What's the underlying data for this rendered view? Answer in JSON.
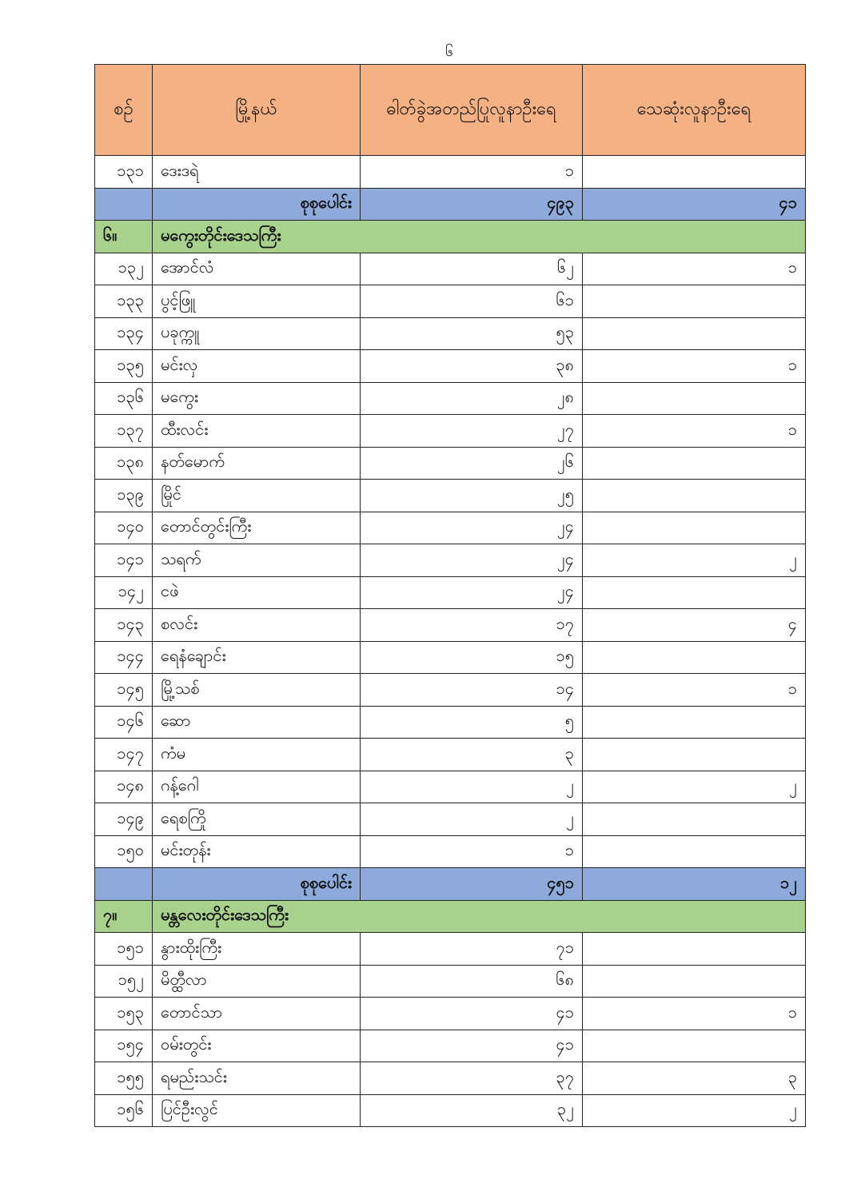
{
  "page_number": "၆",
  "colors": {
    "header": "#f4b183",
    "total_row": "#8eaadb",
    "section_row": "#a9d18e"
  },
  "table": {
    "headers": [
      "စဉ်",
      "မြို့နယ်",
      "ဓါတ်ခွဲအတည်ပြုလူနာဦးရေ",
      "သေဆုံးလူနာဦးရေ"
    ],
    "rows": [
      {
        "type": "row",
        "no": "၁၃၁",
        "township": "ဒေးဒရဲ",
        "confirmed": "၁",
        "deaths": ""
      },
      {
        "type": "total",
        "label": "စုစုပေါင်း",
        "confirmed": "၄၉၃",
        "deaths": "၄၁"
      },
      {
        "type": "section",
        "no": "၆။",
        "region": "မကွေးတိုင်းဒေသကြီး"
      },
      {
        "type": "row",
        "no": "၁၃၂",
        "township": "အောင်လံ",
        "confirmed": "၆၂",
        "deaths": "၁"
      },
      {
        "type": "row",
        "no": "၁၃၃",
        "township": "ပွင့်ဖြူ",
        "confirmed": "၆၁",
        "deaths": ""
      },
      {
        "type": "row",
        "no": "၁၃၄",
        "township": "ပခုက္ကူ",
        "confirmed": "၅၃",
        "deaths": ""
      },
      {
        "type": "row",
        "no": "၁၃၅",
        "township": "မင်းလှ",
        "confirmed": "၃၈",
        "deaths": "၁"
      },
      {
        "type": "row",
        "no": "၁၃၆",
        "township": "မကွေး",
        "confirmed": "၂၈",
        "deaths": ""
      },
      {
        "type": "row",
        "no": "၁၃၇",
        "township": "ထီးလင်း",
        "confirmed": "၂၇",
        "deaths": "၁"
      },
      {
        "type": "row",
        "no": "၁၃၈",
        "township": "နတ်မောက်",
        "confirmed": "၂၆",
        "deaths": ""
      },
      {
        "type": "row",
        "no": "၁၃၉",
        "township": "မြိုင်",
        "confirmed": "၂၅",
        "deaths": ""
      },
      {
        "type": "row",
        "no": "၁၄၀",
        "township": "တောင်တွင်းကြီး",
        "confirmed": "၂၄",
        "deaths": ""
      },
      {
        "type": "row",
        "no": "၁၄၁",
        "township": "သရက်",
        "confirmed": "၂၄",
        "deaths": "၂"
      },
      {
        "type": "row",
        "no": "၁၄၂",
        "township": "ငဖဲ",
        "confirmed": "၂၄",
        "deaths": ""
      },
      {
        "type": "row",
        "no": "၁၄၃",
        "township": "စလင်း",
        "confirmed": "၁၇",
        "deaths": "၄"
      },
      {
        "type": "row",
        "no": "၁၄၄",
        "township": "ရေနံချောင်း",
        "confirmed": "၁၅",
        "deaths": ""
      },
      {
        "type": "row",
        "no": "၁၄၅",
        "township": "မြို့သစ်",
        "confirmed": "၁၄",
        "deaths": "၁"
      },
      {
        "type": "row",
        "no": "၁၄၆",
        "township": "ဆော",
        "confirmed": "၅",
        "deaths": ""
      },
      {
        "type": "row",
        "no": "၁၄၇",
        "township": "ကံမ",
        "confirmed": "၃",
        "deaths": ""
      },
      {
        "type": "row",
        "no": "၁၄၈",
        "township": "ဂန့်ဂေါ",
        "confirmed": "၂",
        "deaths": "၂"
      },
      {
        "type": "row",
        "no": "၁၄၉",
        "township": "ရေစကြို",
        "confirmed": "၂",
        "deaths": ""
      },
      {
        "type": "row",
        "no": "၁၅၀",
        "township": "မင်းတုန်း",
        "confirmed": "၁",
        "deaths": ""
      },
      {
        "type": "total",
        "label": "စုစုပေါင်း",
        "confirmed": "၄၅၁",
        "deaths": "၁၂"
      },
      {
        "type": "section",
        "no": "၇။",
        "region": "မန္တလေးတိုင်းဒေသကြီး"
      },
      {
        "type": "row",
        "no": "၁၅၁",
        "township": "နွားထိုးကြီး",
        "confirmed": "၇၁",
        "deaths": ""
      },
      {
        "type": "row",
        "no": "၁၅၂",
        "township": "မိတ္ထီလာ",
        "confirmed": "၆၈",
        "deaths": ""
      },
      {
        "type": "row",
        "no": "၁၅၃",
        "township": "တောင်သာ",
        "confirmed": "၄၁",
        "deaths": "၁"
      },
      {
        "type": "row",
        "no": "၁၅၄",
        "township": "ဝမ်းတွင်း",
        "confirmed": "၄၁",
        "deaths": ""
      },
      {
        "type": "row",
        "no": "၁၅၅",
        "township": "ရမည်းသင်း",
        "confirmed": "၃၇",
        "deaths": "၃"
      },
      {
        "type": "row",
        "no": "၁၅၆",
        "township": "ပြင်ဦးလွင်",
        "confirmed": "၃၂",
        "deaths": "၂"
      }
    ]
  }
}
